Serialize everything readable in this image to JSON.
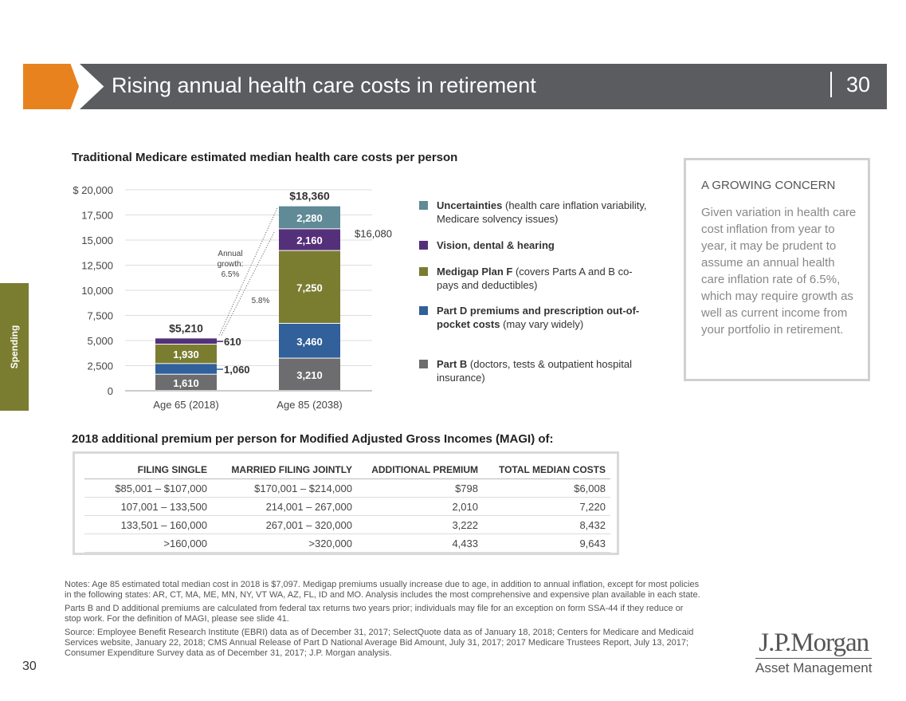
{
  "header": {
    "title": "Rising annual health care costs in retirement",
    "page_number": "30"
  },
  "side_tab": "Spending",
  "chart_data": {
    "type": "bar",
    "stacked": true,
    "title": "Traditional Medicare estimated median health care costs per person",
    "categories": [
      "Age 65 (2018)",
      "Age 85 (2038)"
    ],
    "ylim": [
      0,
      20000
    ],
    "y_ticks": [
      "$ 20,000",
      "17,500",
      "15,000",
      "12,500",
      "10,000",
      "7,500",
      "5,000",
      "2,500",
      "0"
    ],
    "y_tick_values": [
      20000,
      17500,
      15000,
      12500,
      10000,
      7500,
      5000,
      2500,
      0
    ],
    "grid": true,
    "series": [
      {
        "name": "Part B",
        "values": [
          1610,
          3210
        ],
        "labels": [
          "1,610",
          "3,210"
        ],
        "color": "#6d6d6f"
      },
      {
        "name": "Part D premiums and prescription out-of-pocket costs",
        "values": [
          1060,
          3460
        ],
        "labels": [
          "1,060",
          "3,460"
        ],
        "color": "#31609a"
      },
      {
        "name": "Medigap Plan F",
        "values": [
          1930,
          7250
        ],
        "labels": [
          "1,930",
          "7,250"
        ],
        "color": "#7a7d30"
      },
      {
        "name": "Vision, dental & hearing",
        "values": [
          610,
          2160
        ],
        "labels": [
          "610",
          "2,160"
        ],
        "color": "#55307a"
      },
      {
        "name": "Uncertainties",
        "values": [
          0,
          2280
        ],
        "labels": [
          "",
          "2,280"
        ],
        "color": "#5f8a96"
      }
    ],
    "totals": [
      "$5,210",
      "$18,360"
    ],
    "annotations": {
      "subtotal": "$16,080",
      "growth_label_1": "Annual",
      "growth_label_2": "growth:",
      "growth_label_3": "6.5%",
      "growth_alt": "5.8%"
    },
    "legend": [
      {
        "bold": "Uncertainties",
        "text": " (health care inflation variability, Medicare solvency issues)",
        "color": "#5f8a96"
      },
      {
        "bold": "Vision, dental & hearing",
        "text": "",
        "color": "#55307a"
      },
      {
        "bold": "Medigap Plan F",
        "text": " (covers Parts A and B co-pays and deductibles)",
        "color": "#7a7d30"
      },
      {
        "bold": "Part D premiums and prescription out-of-pocket costs",
        "text": " (may vary widely)",
        "color": "#31609a"
      },
      {
        "bold": "Part B",
        "text": " (doctors, tests & outpatient hospital insurance)",
        "color": "#6d6d6f"
      }
    ]
  },
  "concern": {
    "heading": "A GROWING CONCERN",
    "text": "Given variation in health care cost inflation from year to year, it may be prudent to assume an annual health care inflation rate of 6.5%, which may require growth as well as current income from your portfolio in retirement."
  },
  "table": {
    "title": "2018 additional premium per person for Modified Adjusted Gross Incomes (MAGI) of:",
    "headers": [
      "FILING SINGLE",
      "MARRIED FILING JOINTLY",
      "ADDITIONAL PREMIUM",
      "TOTAL MEDIAN COSTS"
    ],
    "rows": [
      [
        "$85,001 – $107,000",
        "$170,001 – $214,000",
        "$798",
        "$6,008"
      ],
      [
        "107,001 – 133,500",
        "214,001 – 267,000",
        "2,010",
        "7,220"
      ],
      [
        "133,501 – 160,000",
        "267,001 – 320,000",
        "3,222",
        "8,432"
      ],
      [
        ">160,000",
        ">320,000",
        "4,433",
        "9,643"
      ]
    ]
  },
  "notes": [
    "Notes: Age 85 estimated total median cost in 2018 is $7,097. Medigap premiums usually increase due to age, in addition to annual inflation, except for most policies in the following states: AR, CT, MA, ME, MN, NY, VT WA, AZ, FL, ID and MO. Analysis includes the most comprehensive and expensive plan available in each state.",
    "Parts B and D additional premiums are calculated from federal tax returns two years prior; individuals may file for an exception on form SSA-44 if they reduce or stop work. For the definition of MAGI, please see slide 41.",
    "Source: Employee Benefit Research Institute (EBRI) data as of December 31, 2017; SelectQuote data as of January 18, 2018; Centers for Medicare and Medicaid Services website, January 22, 2018; CMS Annual Release of Part D National Average Bid Amount, July 31, 2017; 2017 Medicare Trustees Report, July 13, 2017; Consumer Expenditure Survey data as of December 31, 2017; J.P. Morgan analysis."
  ],
  "footer": {
    "page_number": "30",
    "logo_line1": "J.P.Morgan",
    "logo_line2": "Asset Management"
  }
}
